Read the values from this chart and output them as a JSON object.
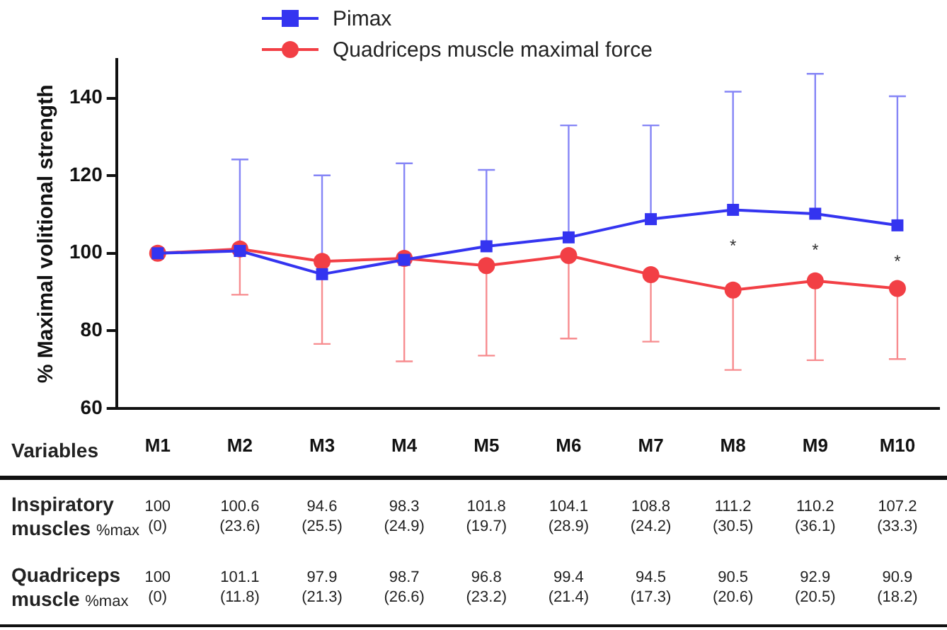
{
  "chart_data": {
    "type": "line",
    "ylabel": "% Maximal volitional strength",
    "categories": [
      "M1",
      "M2",
      "M3",
      "M4",
      "M5",
      "M6",
      "M7",
      "M8",
      "M9",
      "M10"
    ],
    "ylim": [
      60,
      150
    ],
    "yticks": [
      60,
      80,
      100,
      120,
      140
    ],
    "grid": false,
    "legend": "top",
    "line_style": "solid",
    "series": [
      {
        "name": "Pimax",
        "color": "#3434f0",
        "marker": "square",
        "values": [
          100,
          100.6,
          94.6,
          98.3,
          101.8,
          104.1,
          108.8,
          111.2,
          110.2,
          107.2
        ],
        "errors": [
          null,
          [
            100.6,
            124.2
          ],
          [
            94.6,
            120.1
          ],
          [
            98.3,
            123.2
          ],
          [
            101.8,
            121.5
          ],
          [
            104.1,
            133.0
          ],
          [
            108.8,
            133.0
          ],
          [
            111.2,
            141.7
          ],
          [
            110.2,
            146.3
          ],
          [
            107.2,
            140.5
          ]
        ],
        "value_labels": [
          "100\n(0)",
          "100.6\n(23.6)",
          "94.6\n(25.5)",
          "98.3\n(24.9)",
          "101.8\n(19.7)",
          "104.1\n(28.9)",
          "108.8\n(24.2)",
          "111.2\n(30.5)",
          "110.2\n(36.1)",
          "107.2\n(33.3)"
        ]
      },
      {
        "name": "Quadriceps muscle maximal force",
        "color": "#f23f45",
        "marker": "circle",
        "values": [
          100,
          101.1,
          97.9,
          98.7,
          96.8,
          99.4,
          94.5,
          90.5,
          92.9,
          90.9
        ],
        "errors": [
          null,
          [
            89.3,
            101.1
          ],
          [
            76.6,
            97.9
          ],
          [
            72.1,
            98.7
          ],
          [
            73.6,
            96.8
          ],
          [
            78.0,
            99.4
          ],
          [
            77.2,
            94.5
          ],
          [
            69.9,
            90.5
          ],
          [
            72.4,
            92.9
          ],
          [
            72.7,
            90.9
          ]
        ],
        "value_labels": [
          "100\n(0)",
          "101.1\n(11.8)",
          "97.9\n(21.3)",
          "98.7\n(26.6)",
          "96.8\n(23.2)",
          "99.4\n(21.4)",
          "94.5\n(17.3)",
          "90.5\n(20.6)",
          "92.9\n(20.5)",
          "90.9\n(18.2)"
        ]
      }
    ],
    "annotations": [
      "Variables",
      "Inspiratory muscles %max",
      "Quadriceps muscle %max",
      {
        "text": "*",
        "x": "M8",
        "y": 111.2
      },
      {
        "text": "*",
        "x": "M9",
        "y": 110.2
      },
      {
        "text": "*",
        "x": "M10",
        "y": 107.2
      }
    ]
  }
}
